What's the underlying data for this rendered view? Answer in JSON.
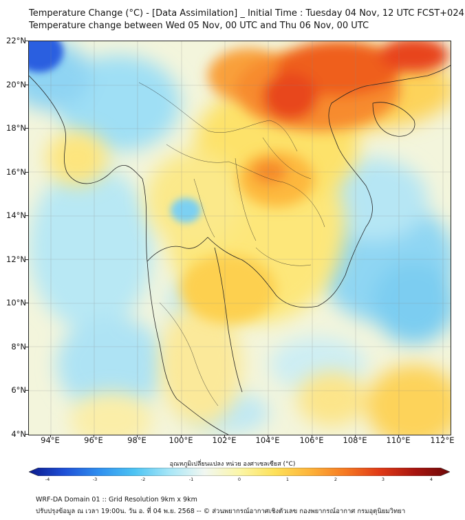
{
  "title": {
    "line1": "Temperature Change (°C) - [Data Assimilation] _ Initial Time : Tuesday 04 Nov, 12 UTC FCST+024",
    "line2": "Temperature change between Wed 05 Nov, 00 UTC and Thu 06 Nov, 00 UTC"
  },
  "axes": {
    "lat_labels": [
      "22°N",
      "20°N",
      "18°N",
      "16°N",
      "14°N",
      "12°N",
      "10°N",
      "8°N",
      "6°N",
      "4°N"
    ],
    "lon_labels": [
      "94°E",
      "96°E",
      "98°E",
      "100°E",
      "102°E",
      "104°E",
      "106°E",
      "108°E",
      "110°E",
      "112°E"
    ]
  },
  "colorbar": {
    "label": "อุณหภูมิเปลี่ยนแปลง หน่วย องศาเซลเซียส (°C)",
    "ticks": [
      "-4",
      "-3",
      "-2",
      "-1",
      "0",
      "1",
      "2",
      "3",
      "4"
    ],
    "colors": [
      "#0b1a8c",
      "#1e4fd6",
      "#2f8fef",
      "#4cc3f3",
      "#a6e6f7",
      "#f1f7f1",
      "#fbf6a8",
      "#fde15a",
      "#fdb43a",
      "#f67a22",
      "#e03a17",
      "#a8150f",
      "#6d0808"
    ]
  },
  "footer": {
    "line1": "WRF-DA Domain 01 :: Grid Resolution 9km x 9km",
    "line2": "ปรับปรุงข้อมูล ณ เวลา 19:00น. วัน อ. ที่ 04 พ.ย. 2568 -- © ส่วนพยากรณ์อากาศเชิงตัวเลข กองพยากรณ์อากาศ กรมอุตุนิยมวิทยา"
  }
}
